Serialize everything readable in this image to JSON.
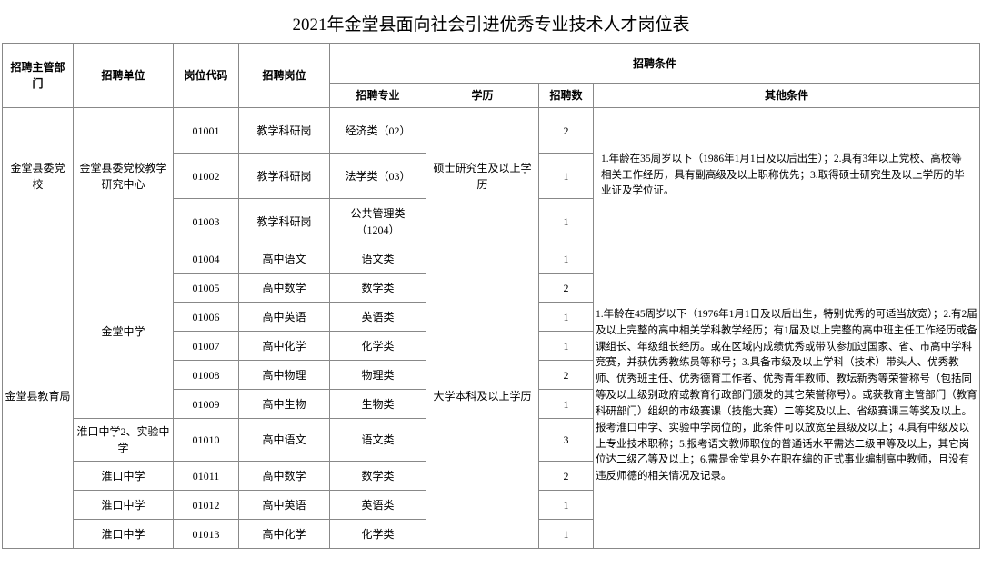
{
  "title": "2021年金堂县面向社会引进优秀专业技术人才岗位表",
  "headers": {
    "dept": "招聘主管部门",
    "unit": "招聘单位",
    "code": "岗位代码",
    "post": "招聘岗位",
    "cond": "招聘条件",
    "major": "招聘专业",
    "edu": "学历",
    "num": "招聘数",
    "other": "其他条件"
  },
  "group1": {
    "dept": "金堂县委党校",
    "unit": "金堂县委党校教学研究中心",
    "edu": "硕士研究生及以上学历",
    "other": "1.年龄在35周岁以下（1986年1月1日及以后出生）；2.具有3年以上党校、高校等相关工作经历，具有副高级及以上职称优先；3.取得硕士研究生及以上学历的毕业证及学位证。",
    "rows": [
      {
        "code": "01001",
        "post": "教学科研岗",
        "major": "经济类（02）",
        "num": "2"
      },
      {
        "code": "01002",
        "post": "教学科研岗",
        "major": "法学类（03）",
        "num": "1"
      },
      {
        "code": "01003",
        "post": "教学科研岗",
        "major": "公共管理类（1204）",
        "num": "1"
      }
    ]
  },
  "group2": {
    "dept": "金堂县教育局",
    "edu": "大学本科及以上学历",
    "other": "1.年龄在45周岁以下（1976年1月1日及以后出生，特别优秀的可适当放宽）；2.有2届及以上完整的高中相关学科教学经历；有1届及以上完整的高中班主任工作经历或备课组长、年级组长经历。或在区域内成绩优秀或带队参加过国家、省、市高中学科竞赛，并获优秀教练员等称号；3.具备市级及以上学科（技术）带头人、优秀教师、优秀班主任、优秀德育工作者、优秀青年教师、教坛新秀等荣誉称号（包括同等及以上级别政府或教育行政部门颁发的其它荣誉称号）。或获教育主管部门（教育科研部门）组织的市级赛课（技能大赛）二等奖及以上、省级赛课三等奖及以上。报考淮口中学、实验中学岗位的，此条件可以放宽至县级及以上；4.具有中级及以上专业技术职称；5.报考语文教师职位的普通话水平需达二级甲等及以上，其它岗位达二级乙等及以上；6.需是金堂县外在职在编的正式事业编制高中教师，且没有违反师德的相关情况及记录。",
    "units": {
      "u1": "金堂中学",
      "u2": "淮口中学2、实验中学",
      "u3": "淮口中学"
    },
    "rows": [
      {
        "unit_span": 6,
        "unit_key": "u1",
        "code": "01004",
        "post": "高中语文",
        "major": "语文类",
        "num": "1"
      },
      {
        "code": "01005",
        "post": "高中数学",
        "major": "数学类",
        "num": "2"
      },
      {
        "code": "01006",
        "post": "高中英语",
        "major": "英语类",
        "num": "1"
      },
      {
        "code": "01007",
        "post": "高中化学",
        "major": "化学类",
        "num": "1"
      },
      {
        "code": "01008",
        "post": "高中物理",
        "major": "物理类",
        "num": "2"
      },
      {
        "code": "01009",
        "post": "高中生物",
        "major": "生物类",
        "num": "1"
      },
      {
        "unit_span": 1,
        "unit_key": "u2",
        "code": "01010",
        "post": "高中语文",
        "major": "语文类",
        "num": "3"
      },
      {
        "unit_span": 1,
        "unit_key": "u3",
        "code": "01011",
        "post": "高中数学",
        "major": "数学类",
        "num": "2"
      },
      {
        "unit_span": 1,
        "unit_key": "u3",
        "code": "01012",
        "post": "高中英语",
        "major": "英语类",
        "num": "1"
      },
      {
        "unit_span": 1,
        "unit_key": "u3",
        "code": "01013",
        "post": "高中化学",
        "major": "化学类",
        "num": "1"
      }
    ]
  }
}
